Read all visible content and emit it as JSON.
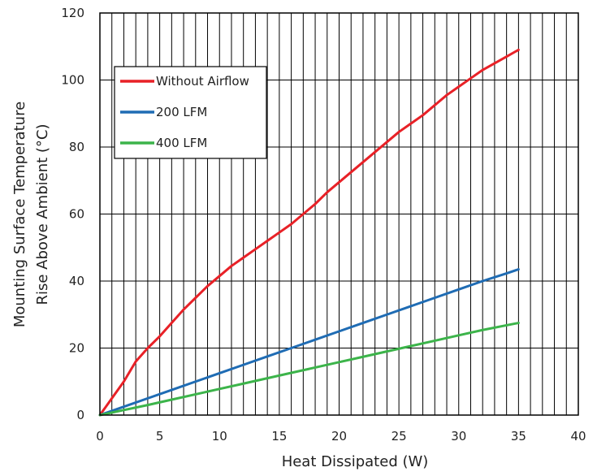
{
  "chart_data": {
    "type": "line",
    "xlabel": "Heat Dissipated (W)",
    "ylabel_lines": [
      "Mounting Surface Temperature",
      "Rise Above  Ambient (°C)"
    ],
    "xlim": [
      0,
      40
    ],
    "ylim": [
      0,
      120
    ],
    "x_ticks": [
      "0",
      "5",
      "10",
      "15",
      "20",
      "25",
      "30",
      "35",
      "40"
    ],
    "y_ticks": [
      "0",
      "20",
      "40",
      "60",
      "80",
      "100",
      "120"
    ],
    "grid": {
      "vertical_step": 1,
      "horizontal_step": 20
    },
    "legend": {
      "position": "top-left"
    },
    "series": [
      {
        "name": "Without Airflow",
        "color": "#e82127",
        "x": [
          0,
          1,
          2,
          3,
          4,
          5,
          6,
          7,
          8,
          9,
          10,
          11,
          12,
          13,
          14,
          15,
          16,
          17,
          18,
          19,
          20,
          21,
          22,
          23,
          24,
          25,
          26,
          27,
          28,
          29,
          30,
          31,
          32,
          33,
          34,
          35
        ],
        "y": [
          0,
          5,
          10,
          16,
          20,
          23.5,
          27.5,
          31.5,
          35,
          38.5,
          41.5,
          44.5,
          47,
          49.5,
          52,
          54.5,
          57,
          60,
          63,
          66.5,
          69.5,
          72.5,
          75.5,
          78.5,
          81.5,
          84.5,
          87,
          89.5,
          92.5,
          95.5,
          98,
          100.5,
          103,
          105,
          107,
          109
        ]
      },
      {
        "name": "200 LFM",
        "color": "#1f6cb4",
        "x": [
          0,
          2,
          4,
          6,
          8,
          10,
          12,
          14,
          16,
          18,
          20,
          22,
          24,
          26,
          28,
          30,
          32,
          34,
          35
        ],
        "y": [
          0,
          2.5,
          5,
          7.5,
          10,
          12.5,
          15,
          17.5,
          20,
          22.5,
          25,
          27.5,
          30,
          32.5,
          35,
          37.5,
          40,
          42.3,
          43.5
        ]
      },
      {
        "name": "400 LFM",
        "color": "#3cb44a",
        "x": [
          0,
          2,
          4,
          6,
          8,
          10,
          12,
          14,
          16,
          18,
          20,
          22,
          24,
          26,
          28,
          30,
          32,
          34,
          35
        ],
        "y": [
          0,
          1.5,
          3,
          4.6,
          6.2,
          7.8,
          9.4,
          11,
          12.6,
          14.2,
          15.8,
          17.4,
          19,
          20.6,
          22.2,
          23.8,
          25.4,
          26.8,
          27.5
        ]
      }
    ]
  }
}
